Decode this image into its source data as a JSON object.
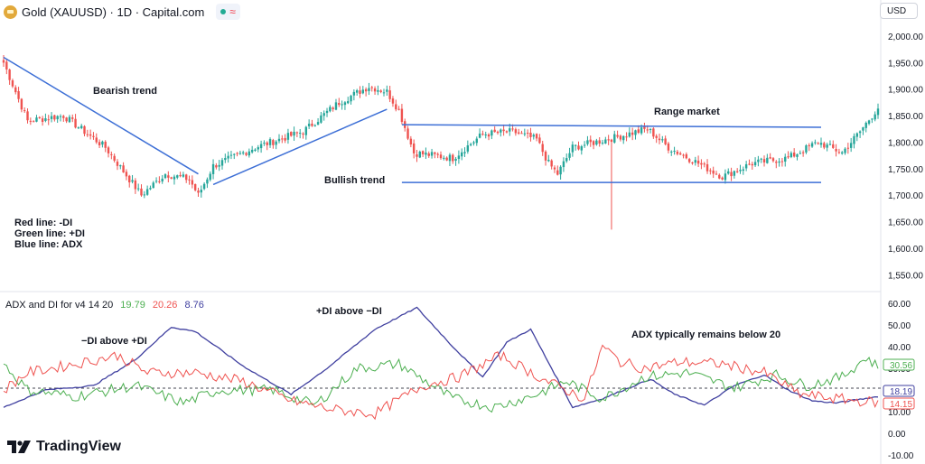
{
  "header": {
    "title": "Gold (XAUUSD) · 1D · Capital.com",
    "status_wave": "≈"
  },
  "currency": "USD",
  "legend_lines": [
    "Red line: -DI",
    "Green line: +DI",
    "Blue line: ADX"
  ],
  "indicator": {
    "name": "ADX and DI for v4 14 20",
    "plus_di": "19.79",
    "minus_di": "20.26",
    "adx": "8.76"
  },
  "brand": "TradingView",
  "colors": {
    "up": "#26a69a",
    "down": "#ef5350",
    "adx": "#3f3f9f",
    "plus_di": "#4caf50",
    "minus_di": "#ef5350",
    "trendline": "#3d6fd6"
  },
  "chart_data": [
    {
      "type": "candlestick",
      "title": "Gold (XAUUSD) · 1D · Capital.com",
      "yticks": [
        1550,
        1600,
        1650,
        1700,
        1750,
        1800,
        1850,
        1900,
        1950,
        2000
      ],
      "ytick_labels": [
        "1,550.00",
        "1,600.00",
        "1,650.00",
        "1,700.00",
        "1,750.00",
        "1,800.00",
        "1,850.00",
        "1,900.00",
        "1,950.00",
        "2,000.00"
      ],
      "ylim": [
        1515,
        2030
      ],
      "close_keypoints": [
        [
          0,
          1950
        ],
        [
          8,
          1840
        ],
        [
          20,
          1850
        ],
        [
          34,
          1790
        ],
        [
          46,
          1700
        ],
        [
          54,
          1740
        ],
        [
          62,
          1730
        ],
        [
          65,
          1700
        ],
        [
          70,
          1755
        ],
        [
          84,
          1790
        ],
        [
          100,
          1820
        ],
        [
          112,
          1875
        ],
        [
          122,
          1905
        ],
        [
          128,
          1895
        ],
        [
          132,
          1860
        ],
        [
          137,
          1780
        ],
        [
          150,
          1770
        ],
        [
          160,
          1815
        ],
        [
          170,
          1820
        ],
        [
          178,
          1805
        ],
        [
          182,
          1760
        ],
        [
          185,
          1740
        ],
        [
          190,
          1790
        ],
        [
          205,
          1810
        ],
        [
          215,
          1825
        ],
        [
          222,
          1790
        ],
        [
          232,
          1760
        ],
        [
          240,
          1735
        ],
        [
          250,
          1760
        ],
        [
          262,
          1770
        ],
        [
          272,
          1800
        ],
        [
          280,
          1780
        ],
        [
          286,
          1820
        ],
        [
          292,
          1865
        ]
      ],
      "notable_wick_low": 1635,
      "annotations": [
        "Bearish trend",
        "Bullish trend",
        "Range market"
      ],
      "trendlines": [
        {
          "name": "bearish-trendline",
          "from": [
            0,
            1960
          ],
          "to": [
            65,
            1740
          ]
        },
        {
          "name": "bullish-trendline",
          "from": [
            70,
            1720
          ],
          "to": [
            128,
            1862
          ]
        },
        {
          "name": "range-top-line",
          "from": [
            133,
            1833
          ],
          "to": [
            273,
            1828
          ]
        },
        {
          "name": "range-bottom-line",
          "from": [
            133,
            1724
          ],
          "to": [
            273,
            1724
          ]
        }
      ]
    },
    {
      "type": "line",
      "title": "ADX and DI for v4 14 20",
      "yticks": [
        -10,
        0,
        10,
        20,
        30,
        40,
        50,
        60
      ],
      "ytick_labels": [
        "-10.00",
        "0.00",
        "10.00",
        "20.00",
        "30.00",
        "40.00",
        "50.00",
        "60.00"
      ],
      "ylim": [
        -14,
        64
      ],
      "threshold": 20,
      "series": [
        {
          "name": "ADX",
          "keypoints": [
            [
              0,
              12
            ],
            [
              14,
              20
            ],
            [
              30,
              22
            ],
            [
              44,
              34
            ],
            [
              56,
              49
            ],
            [
              64,
              47
            ],
            [
              80,
              31
            ],
            [
              96,
              18
            ],
            [
              108,
              30
            ],
            [
              124,
              48
            ],
            [
              138,
              58
            ],
            [
              150,
              40
            ],
            [
              160,
              26
            ],
            [
              168,
              42
            ],
            [
              176,
              48
            ],
            [
              190,
              12
            ],
            [
              200,
              16
            ],
            [
              216,
              25
            ],
            [
              224,
              18
            ],
            [
              234,
              13
            ],
            [
              244,
              22
            ],
            [
              254,
              27
            ],
            [
              262,
              20
            ],
            [
              270,
              15
            ],
            [
              278,
              14
            ],
            [
              292,
              17
            ]
          ],
          "current": "18.19"
        },
        {
          "name": "+DI",
          "keypoints": [
            [
              0,
              32
            ],
            [
              8,
              20
            ],
            [
              24,
              17
            ],
            [
              44,
              22
            ],
            [
              60,
              14
            ],
            [
              72,
              20
            ],
            [
              90,
              20
            ],
            [
              104,
              13
            ],
            [
              118,
              30
            ],
            [
              132,
              32
            ],
            [
              150,
              16
            ],
            [
              164,
              12
            ],
            [
              178,
              18
            ],
            [
              188,
              24
            ],
            [
              200,
              16
            ],
            [
              214,
              26
            ],
            [
              228,
              28
            ],
            [
              244,
              21
            ],
            [
              258,
              27
            ],
            [
              268,
              22
            ],
            [
              280,
              26
            ],
            [
              288,
              35
            ],
            [
              292,
              30.56
            ]
          ],
          "current": "30.56"
        },
        {
          "name": "-DI",
          "keypoints": [
            [
              0,
              20
            ],
            [
              8,
              28
            ],
            [
              24,
              32
            ],
            [
              38,
              36
            ],
            [
              48,
              28
            ],
            [
              64,
              28
            ],
            [
              80,
              24
            ],
            [
              96,
              15
            ],
            [
              110,
              11
            ],
            [
              124,
              9
            ],
            [
              140,
              22
            ],
            [
              152,
              26
            ],
            [
              166,
              36
            ],
            [
              180,
              25
            ],
            [
              194,
              16
            ],
            [
              200,
              40
            ],
            [
              206,
              33
            ],
            [
              214,
              30
            ],
            [
              226,
              33
            ],
            [
              240,
              32
            ],
            [
              254,
              28
            ],
            [
              266,
              18
            ],
            [
              278,
              16
            ],
            [
              292,
              14.15
            ]
          ],
          "current": "14.15"
        }
      ],
      "annotations": [
        "−DI above +DI",
        "+DI above −DI",
        "ADX typically remains below 20"
      ]
    }
  ]
}
